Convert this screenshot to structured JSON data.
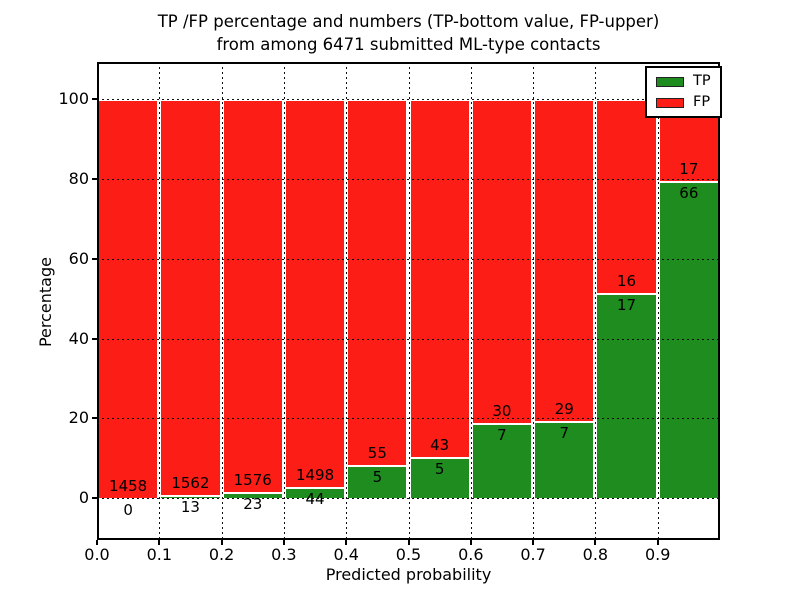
{
  "figure": {
    "title_line1": "TP /FP percentage and numbers (TP-bottom value, FP-upper)",
    "title_line2": "from among 6471 submitted ML-type contacts"
  },
  "chart_data": {
    "type": "bar",
    "stacked": true,
    "normalized_to_percent": true,
    "title": "TP /FP percentage and numbers (TP-bottom value, FP-upper) from among 6471 submitted ML-type contacts",
    "xlabel": "Predicted probability",
    "ylabel": "Percentage",
    "x_tick_labels": [
      "0.0",
      "0.1",
      "0.2",
      "0.3",
      "0.4",
      "0.5",
      "0.6",
      "0.7",
      "0.8",
      "0.9"
    ],
    "y_tick_values": [
      0,
      20,
      40,
      60,
      80,
      100
    ],
    "y_tick_labels": [
      "0",
      "20",
      "40",
      "60",
      "80",
      "100"
    ],
    "xlim": [
      0.0,
      1.0
    ],
    "ylim": [
      -10.5,
      109.4
    ],
    "grid": true,
    "grid_style": "dotted",
    "colors": {
      "tp": "#1e8c1e",
      "fp": "#fc1d16",
      "bar_edge": "#ffffff",
      "grid": "#101010"
    },
    "legend": {
      "position": "upper-right",
      "entries": [
        {
          "label": "TP",
          "color_key": "tp"
        },
        {
          "label": "FP",
          "color_key": "fp"
        }
      ]
    },
    "bins": [
      {
        "range": "0.0-0.1",
        "tp": 0,
        "fp": 1458,
        "tp_pct": 0.0
      },
      {
        "range": "0.1-0.2",
        "tp": 13,
        "fp": 1562,
        "tp_pct": 0.83
      },
      {
        "range": "0.2-0.3",
        "tp": 23,
        "fp": 1576,
        "tp_pct": 1.44
      },
      {
        "range": "0.3-0.4",
        "tp": 44,
        "fp": 1498,
        "tp_pct": 2.85
      },
      {
        "range": "0.4-0.5",
        "tp": 5,
        "fp": 55,
        "tp_pct": 8.33
      },
      {
        "range": "0.5-0.6",
        "tp": 5,
        "fp": 43,
        "tp_pct": 10.42
      },
      {
        "range": "0.6-0.7",
        "tp": 7,
        "fp": 30,
        "tp_pct": 18.92
      },
      {
        "range": "0.7-0.8",
        "tp": 7,
        "fp": 29,
        "tp_pct": 19.44
      },
      {
        "range": "0.8-0.9",
        "tp": 17,
        "fp": 16,
        "tp_pct": 51.52
      },
      {
        "range": "0.9-1.0",
        "tp": 66,
        "fp": 17,
        "tp_pct": 79.52
      }
    ]
  }
}
